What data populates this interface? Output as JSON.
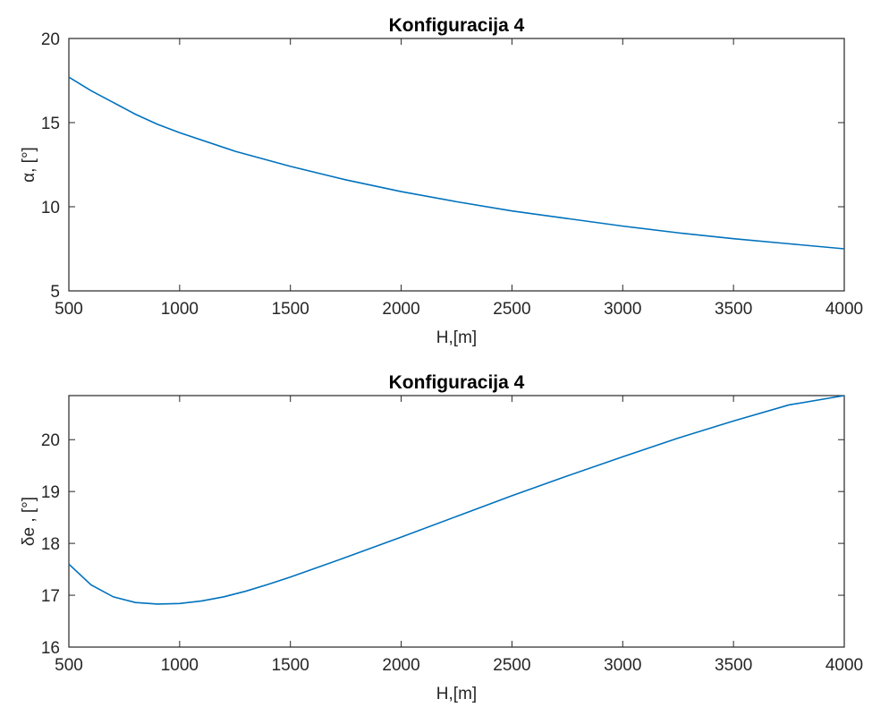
{
  "chart_data": [
    {
      "type": "line",
      "title": "Konfiguracija 4",
      "xlabel": "H,[m]",
      "ylabel": "α, [°]",
      "xlim": [
        500,
        4000
      ],
      "ylim": [
        5,
        20
      ],
      "xticks": [
        500,
        1000,
        1500,
        2000,
        2500,
        3000,
        3500,
        4000
      ],
      "yticks": [
        5,
        10,
        15,
        20
      ],
      "grid": false,
      "color": "#0072BD",
      "series": [
        {
          "x": [
            500,
            600,
            700,
            800,
            900,
            1000,
            1250,
            1500,
            1750,
            2000,
            2250,
            2500,
            2750,
            3000,
            3250,
            3500,
            3750,
            4000
          ],
          "y": [
            17.7,
            16.9,
            16.2,
            15.5,
            14.9,
            14.4,
            13.3,
            12.4,
            11.6,
            10.9,
            10.3,
            9.75,
            9.3,
            8.85,
            8.45,
            8.1,
            7.8,
            7.5
          ]
        }
      ]
    },
    {
      "type": "line",
      "title": "Konfiguracija 4",
      "xlabel": "H,[m]",
      "ylabel": "δe , [°]",
      "xlim": [
        500,
        4000
      ],
      "ylim": [
        16,
        20.85
      ],
      "xticks": [
        500,
        1000,
        1500,
        2000,
        2500,
        3000,
        3500,
        4000
      ],
      "yticks": [
        16,
        17,
        18,
        19,
        20
      ],
      "grid": false,
      "color": "#0072BD",
      "series": [
        {
          "x": [
            500,
            600,
            700,
            800,
            900,
            1000,
            1100,
            1200,
            1300,
            1400,
            1500,
            1750,
            2000,
            2250,
            2500,
            2750,
            3000,
            3250,
            3500,
            3750,
            4000
          ],
          "y": [
            17.6,
            17.2,
            16.97,
            16.86,
            16.83,
            16.84,
            16.89,
            16.97,
            17.08,
            17.21,
            17.35,
            17.73,
            18.12,
            18.52,
            18.92,
            19.3,
            19.67,
            20.03,
            20.36,
            20.67,
            20.85
          ]
        }
      ]
    }
  ]
}
